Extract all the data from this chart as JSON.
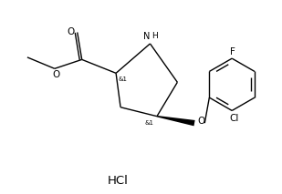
{
  "hcl_label": "HCl",
  "stereo1": "&1",
  "stereo2": "&1",
  "label_F": "F",
  "label_Cl": "Cl",
  "label_NH": "H",
  "label_N": "N",
  "label_O_carbonyl": "O",
  "label_O_ester": "O",
  "label_O_ether": "O",
  "bg_color": "#ffffff",
  "line_color": "#000000",
  "font_size": 6.5,
  "fig_width": 3.09,
  "fig_height": 2.13,
  "dpi": 100
}
